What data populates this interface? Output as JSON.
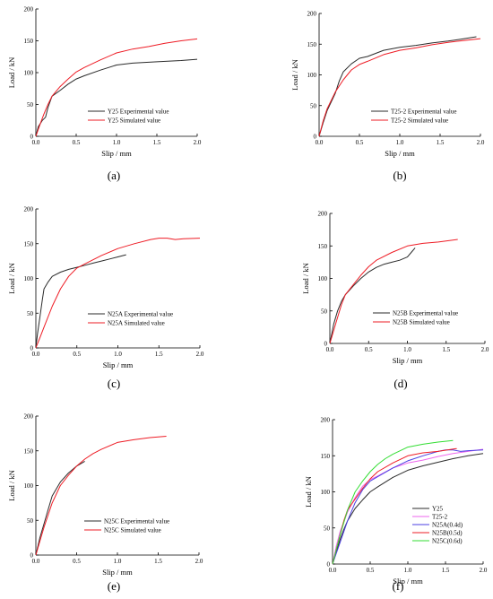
{
  "figure": {
    "panel_labels": [
      "(a)",
      "(b)",
      "(c)",
      "(d)",
      "(e)",
      "(f)"
    ],
    "colors": {
      "experimental": "#2b2b2b",
      "simulated": "#ee1c25",
      "axis": "#000000",
      "Y25": "#2b2b2b",
      "T25-2": "#ee66ee",
      "N25A": "#4b3fe3",
      "N25B": "#ee1c25",
      "N25C": "#33dd33"
    }
  },
  "chart_data": [
    {
      "panel": "(a)",
      "type": "line",
      "xlabel": "Slip / mm",
      "ylabel": "Load / kN",
      "xlim": [
        0.0,
        2.0
      ],
      "ylim": [
        0,
        200
      ],
      "xticks": [
        "0.0",
        "0.5",
        "1.0",
        "1.5",
        "2.0"
      ],
      "yticks": [
        "0",
        "50",
        "100",
        "150",
        "200"
      ],
      "legend_position": "lower-right",
      "grid": false,
      "series": [
        {
          "name": "Y25 Experimental value",
          "color_key": "experimental",
          "x": [
            0,
            0.03,
            0.08,
            0.12,
            0.15,
            0.2,
            0.3,
            0.4,
            0.5,
            0.6,
            0.8,
            1.0,
            1.2,
            1.5,
            1.8,
            2.0
          ],
          "y": [
            0,
            15,
            25,
            30,
            45,
            63,
            72,
            82,
            90,
            95,
            104,
            112,
            115,
            117,
            119,
            121
          ]
        },
        {
          "name": "Y25 Simulated value",
          "color_key": "simulated",
          "x": [
            0,
            0.05,
            0.1,
            0.15,
            0.2,
            0.3,
            0.4,
            0.5,
            0.6,
            0.8,
            1.0,
            1.2,
            1.4,
            1.6,
            1.8,
            2.0
          ],
          "y": [
            0,
            18,
            35,
            50,
            63,
            78,
            90,
            101,
            108,
            120,
            131,
            137,
            141,
            146,
            150,
            153
          ]
        }
      ]
    },
    {
      "panel": "(b)",
      "type": "line",
      "xlabel": "Slip / mm",
      "ylabel": "Load / kN",
      "xlim": [
        0.0,
        2.0
      ],
      "ylim": [
        0,
        200
      ],
      "xticks": [
        "0.0",
        "0.5",
        "1.0",
        "1.5",
        "2.0"
      ],
      "yticks": [
        "0",
        "50",
        "100",
        "150",
        "200"
      ],
      "legend_position": "lower-right",
      "grid": false,
      "series": [
        {
          "name": "T25-2 Experimental value",
          "color_key": "experimental",
          "x": [
            0,
            0.05,
            0.1,
            0.2,
            0.25,
            0.3,
            0.4,
            0.5,
            0.6,
            0.8,
            1.0,
            1.2,
            1.4,
            1.6,
            1.8,
            1.95
          ],
          "y": [
            0,
            22,
            42,
            70,
            90,
            105,
            118,
            127,
            130,
            140,
            145,
            148,
            152,
            155,
            159,
            162
          ]
        },
        {
          "name": "T25-2 Simulated value",
          "color_key": "simulated",
          "x": [
            0,
            0.05,
            0.1,
            0.2,
            0.3,
            0.4,
            0.5,
            0.6,
            0.8,
            1.0,
            1.2,
            1.4,
            1.6,
            1.8,
            2.0
          ],
          "y": [
            0,
            25,
            45,
            72,
            92,
            108,
            117,
            122,
            133,
            140,
            144,
            149,
            153,
            156,
            159
          ]
        }
      ]
    },
    {
      "panel": "(c)",
      "type": "line",
      "xlabel": "Slip / mm",
      "ylabel": "Load / kN",
      "xlim": [
        0.0,
        2.0
      ],
      "ylim": [
        0,
        200
      ],
      "xticks": [
        "0.0",
        "0.5",
        "1.0",
        "1.5",
        "2.0"
      ],
      "yticks": [
        "0",
        "50",
        "100",
        "150",
        "200"
      ],
      "legend_position": "lower-right",
      "grid": false,
      "series": [
        {
          "name": "N25A Experimental value",
          "color_key": "experimental",
          "x": [
            0,
            0.02,
            0.05,
            0.08,
            0.1,
            0.15,
            0.2,
            0.3,
            0.4,
            0.5,
            0.6,
            0.7,
            0.8,
            0.9,
            1.0,
            1.1
          ],
          "y": [
            0,
            20,
            45,
            70,
            85,
            95,
            103,
            109,
            113,
            116,
            119,
            122,
            125,
            128,
            131,
            134
          ]
        },
        {
          "name": "N25A Simulated value",
          "color_key": "simulated",
          "x": [
            0,
            0.05,
            0.1,
            0.2,
            0.3,
            0.4,
            0.5,
            0.6,
            0.8,
            1.0,
            1.2,
            1.4,
            1.5,
            1.6,
            1.7,
            1.8,
            2.0
          ],
          "y": [
            0,
            15,
            30,
            60,
            85,
            103,
            115,
            121,
            133,
            143,
            150,
            156,
            158,
            158,
            156,
            157,
            158
          ]
        }
      ]
    },
    {
      "panel": "(d)",
      "type": "line",
      "xlabel": "Slip / mm",
      "ylabel": "Load / kN",
      "xlim": [
        0.0,
        2.0
      ],
      "ylim": [
        0,
        200
      ],
      "xticks": [
        "0.0",
        "0.5",
        "1.0",
        "1.5",
        "2.0"
      ],
      "yticks": [
        "0",
        "50",
        "100",
        "150",
        "200"
      ],
      "legend_position": "lower-right",
      "grid": false,
      "series": [
        {
          "name": "N25B Experimental value",
          "color_key": "experimental",
          "x": [
            0,
            0.05,
            0.1,
            0.15,
            0.2,
            0.3,
            0.4,
            0.5,
            0.6,
            0.7,
            0.8,
            0.9,
            1.0,
            1.05,
            1.1
          ],
          "y": [
            0,
            30,
            50,
            65,
            75,
            88,
            100,
            110,
            117,
            122,
            125,
            128,
            133,
            140,
            147
          ]
        },
        {
          "name": "N25B Simulated value",
          "color_key": "simulated",
          "x": [
            0,
            0.05,
            0.1,
            0.15,
            0.2,
            0.3,
            0.4,
            0.5,
            0.6,
            0.8,
            1.0,
            1.2,
            1.4,
            1.65
          ],
          "y": [
            0,
            20,
            40,
            60,
            75,
            90,
            105,
            118,
            128,
            140,
            150,
            154,
            156,
            160
          ]
        }
      ]
    },
    {
      "panel": "(e)",
      "type": "line",
      "xlabel": "Slip / mm",
      "ylabel": "Load / kN",
      "xlim": [
        0.0,
        2.0
      ],
      "ylim": [
        0,
        200
      ],
      "xticks": [
        "0.0",
        "0.5",
        "1.0",
        "1.5",
        "2.0"
      ],
      "yticks": [
        "0",
        "50",
        "100",
        "150",
        "200"
      ],
      "legend_position": "lower-right",
      "grid": false,
      "series": [
        {
          "name": "N25C Experimental value",
          "color_key": "experimental",
          "x": [
            0,
            0.05,
            0.1,
            0.15,
            0.2,
            0.3,
            0.4,
            0.5,
            0.6
          ],
          "y": [
            0,
            25,
            45,
            65,
            85,
            105,
            118,
            128,
            135
          ]
        },
        {
          "name": "N25C Simulated value",
          "color_key": "simulated",
          "x": [
            0,
            0.05,
            0.1,
            0.2,
            0.3,
            0.4,
            0.5,
            0.6,
            0.7,
            0.8,
            1.0,
            1.2,
            1.4,
            1.6
          ],
          "y": [
            0,
            20,
            40,
            75,
            100,
            115,
            128,
            138,
            146,
            152,
            162,
            166,
            169,
            171
          ]
        }
      ]
    },
    {
      "panel": "(f)",
      "type": "line",
      "xlabel": "Slip / mm",
      "ylabel": "Load / kN",
      "xlim": [
        0.0,
        2.0
      ],
      "ylim": [
        0,
        200
      ],
      "xticks": [
        "0.0",
        "0.5",
        "1.0",
        "1.5",
        "2.0"
      ],
      "yticks": [
        "0",
        "50",
        "100",
        "150",
        "200"
      ],
      "legend_position": "lower-right",
      "grid": false,
      "series": [
        {
          "name": "Y25",
          "color_key": "Y25",
          "x": [
            0,
            0.05,
            0.1,
            0.15,
            0.2,
            0.3,
            0.4,
            0.5,
            0.6,
            0.8,
            1.0,
            1.2,
            1.4,
            1.6,
            1.8,
            2.0
          ],
          "y": [
            0,
            17,
            34,
            48,
            60,
            77,
            89,
            100,
            107,
            120,
            130,
            136,
            141,
            146,
            150,
            153
          ]
        },
        {
          "name": "T25-2",
          "color_key": "T25-2",
          "x": [
            0,
            0.05,
            0.1,
            0.2,
            0.3,
            0.4,
            0.5,
            0.6,
            0.8,
            1.0,
            1.2,
            1.4,
            1.6,
            1.8,
            2.0
          ],
          "y": [
            0,
            25,
            45,
            72,
            92,
            108,
            117,
            122,
            133,
            140,
            144,
            149,
            153,
            156,
            159
          ]
        },
        {
          "name": "N25A(0.4d)",
          "color_key": "N25A",
          "x": [
            0,
            0.05,
            0.1,
            0.2,
            0.3,
            0.4,
            0.5,
            0.6,
            0.8,
            1.0,
            1.2,
            1.4,
            1.5,
            1.6,
            1.7,
            1.8,
            2.0
          ],
          "y": [
            0,
            15,
            30,
            60,
            85,
            103,
            115,
            121,
            133,
            143,
            150,
            156,
            158,
            158,
            156,
            157,
            158
          ]
        },
        {
          "name": "N25B(0.5d)",
          "color_key": "N25B",
          "x": [
            0,
            0.05,
            0.1,
            0.15,
            0.2,
            0.3,
            0.4,
            0.5,
            0.6,
            0.8,
            1.0,
            1.2,
            1.4,
            1.65
          ],
          "y": [
            0,
            20,
            40,
            60,
            75,
            90,
            105,
            118,
            128,
            140,
            150,
            154,
            156,
            160
          ]
        },
        {
          "name": "N25C(0.6d)",
          "color_key": "N25C",
          "x": [
            0,
            0.05,
            0.1,
            0.2,
            0.3,
            0.4,
            0.5,
            0.6,
            0.7,
            0.8,
            1.0,
            1.2,
            1.4,
            1.6
          ],
          "y": [
            0,
            20,
            40,
            75,
            100,
            115,
            128,
            138,
            146,
            152,
            162,
            166,
            169,
            171
          ]
        }
      ]
    }
  ]
}
